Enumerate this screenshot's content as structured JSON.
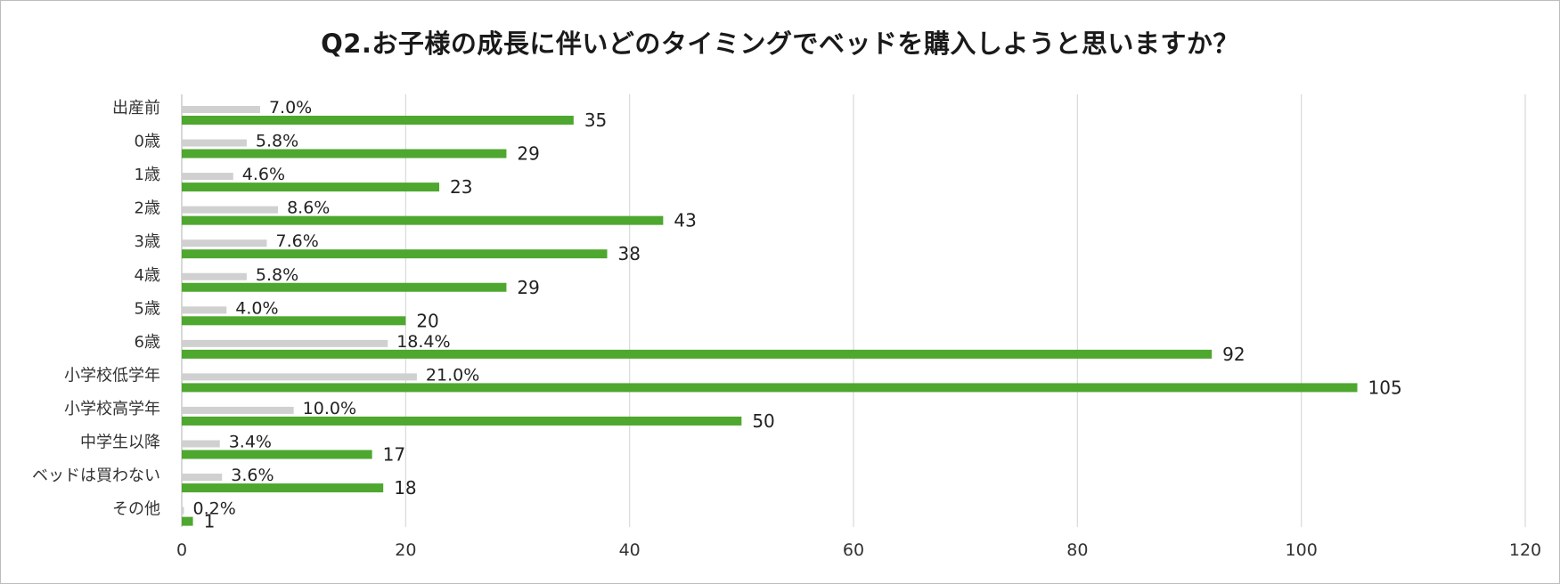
{
  "chart_data": {
    "type": "bar",
    "orientation": "horizontal",
    "title": "Q2.お子様の成長に伴いどのタイミングでベッドを購入しようと思いますか？",
    "categories": [
      "出産前",
      "0歳",
      "1歳",
      "2歳",
      "3歳",
      "4歳",
      "5歳",
      "6歳",
      "小学校低学年",
      "小学校高学年",
      "中学生以降",
      "ベッドは買わない",
      "その他"
    ],
    "series": [
      {
        "values": [
          35,
          29,
          23,
          43,
          38,
          29,
          20,
          92,
          105,
          50,
          17,
          18,
          1
        ]
      },
      {
        "values": [
          "7.0%",
          "5.8%",
          "4.6%",
          "8.6%",
          "7.6%",
          "5.8%",
          "4.0%",
          "18.4%",
          "21.0%",
          "10.0%",
          "3.4%",
          "3.6%",
          "0.2%"
        ]
      }
    ],
    "xlim": [
      0,
      120
    ],
    "xticks": [
      "0",
      "20",
      "40",
      "60",
      "80",
      "100",
      "120"
    ],
    "xlabel": "",
    "ylabel": "",
    "grid": "vertical",
    "legend": "none",
    "colors": {
      "bar": "#4ea72e",
      "grid": "#d9d9d9",
      "axis": "#bfbfbf"
    }
  }
}
